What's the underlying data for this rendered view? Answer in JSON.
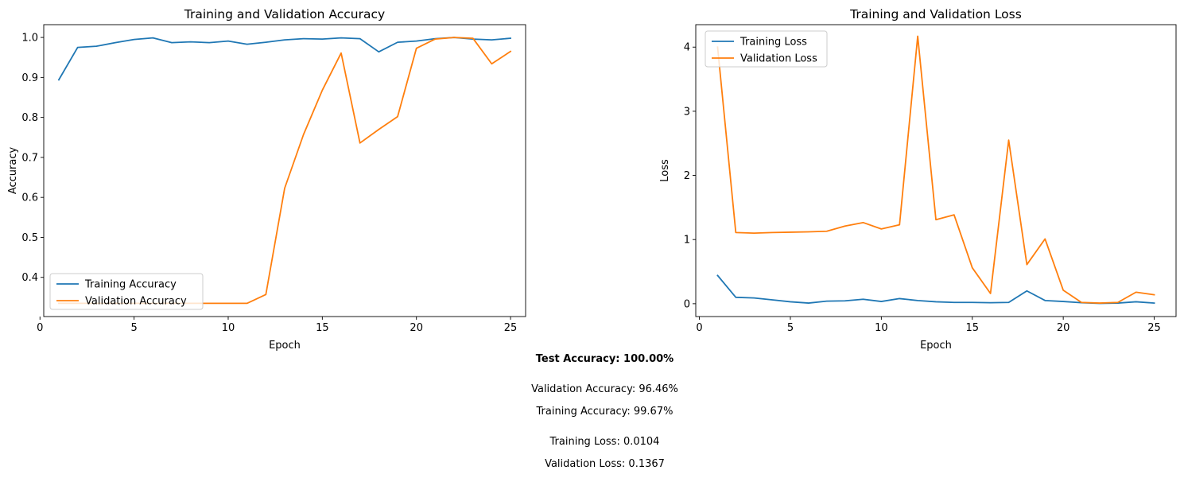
{
  "chart_data": [
    {
      "type": "line",
      "title": "Training and Validation Accuracy",
      "xlabel": "Epoch",
      "ylabel": "Accuracy",
      "x": [
        1,
        2,
        3,
        4,
        5,
        6,
        7,
        8,
        9,
        10,
        11,
        12,
        13,
        14,
        15,
        16,
        17,
        18,
        19,
        20,
        21,
        22,
        23,
        24,
        25
      ],
      "xlim": [
        0.2,
        25.8
      ],
      "ylim": [
        0.302,
        1.032
      ],
      "xticks": [
        0,
        5,
        10,
        15,
        20,
        25
      ],
      "yticks": [
        0.4,
        0.5,
        0.6,
        0.7,
        0.8,
        0.9,
        1.0
      ],
      "ytick_labels": [
        "0.4",
        "0.5",
        "0.6",
        "0.7",
        "0.8",
        "0.9",
        "1.0"
      ],
      "legend_position": "lower left",
      "grid": false,
      "series": [
        {
          "name": "Training Accuracy",
          "color": "#1f77b4",
          "values": [
            0.894,
            0.975,
            0.978,
            0.987,
            0.995,
            0.999,
            0.987,
            0.989,
            0.987,
            0.991,
            0.983,
            0.988,
            0.994,
            0.997,
            0.996,
            0.999,
            0.997,
            0.964,
            0.988,
            0.991,
            0.997,
            1.0,
            0.996,
            0.994,
            0.998
          ]
        },
        {
          "name": "Validation Accuracy",
          "color": "#ff7f0e",
          "values": [
            0.335,
            0.335,
            0.335,
            0.335,
            0.335,
            0.335,
            0.335,
            0.335,
            0.335,
            0.335,
            0.335,
            0.357,
            0.623,
            0.757,
            0.868,
            0.961,
            0.736,
            0.77,
            0.802,
            0.973,
            0.996,
            1.0,
            0.998,
            0.934,
            0.965
          ]
        }
      ]
    },
    {
      "type": "line",
      "title": "Training and Validation Loss",
      "xlabel": "Epoch",
      "ylabel": "Loss",
      "x": [
        1,
        2,
        3,
        4,
        5,
        6,
        7,
        8,
        9,
        10,
        11,
        12,
        13,
        14,
        15,
        16,
        17,
        18,
        19,
        20,
        21,
        22,
        23,
        24,
        25
      ],
      "xlim": [
        -0.2,
        26.2
      ],
      "ylim": [
        -0.2,
        4.35
      ],
      "xticks": [
        0,
        5,
        10,
        15,
        20,
        25
      ],
      "yticks": [
        0,
        1,
        2,
        3,
        4
      ],
      "ytick_labels": [
        "0",
        "1",
        "2",
        "3",
        "4"
      ],
      "legend_position": "upper left",
      "grid": false,
      "series": [
        {
          "name": "Training Loss",
          "color": "#1f77b4",
          "values": [
            0.44,
            0.1,
            0.09,
            0.06,
            0.03,
            0.01,
            0.04,
            0.045,
            0.07,
            0.035,
            0.08,
            0.05,
            0.03,
            0.02,
            0.02,
            0.015,
            0.02,
            0.2,
            0.05,
            0.035,
            0.015,
            0.005,
            0.01,
            0.03,
            0.01
          ]
        },
        {
          "name": "Validation Loss",
          "color": "#ff7f0e",
          "values": [
            4.0,
            1.11,
            1.1,
            1.11,
            1.115,
            1.12,
            1.13,
            1.21,
            1.265,
            1.165,
            1.23,
            4.17,
            1.31,
            1.385,
            0.56,
            0.16,
            2.55,
            0.61,
            1.01,
            0.21,
            0.02,
            0.01,
            0.02,
            0.18,
            0.14
          ]
        }
      ]
    }
  ],
  "metrics": {
    "test_accuracy": "Test Accuracy: 100.00%",
    "validation_accuracy": "Validation Accuracy: 96.46%",
    "training_accuracy": "Training Accuracy: 99.67%",
    "training_loss": "Training Loss: 0.0104",
    "validation_loss": "Validation Loss: 0.1367"
  }
}
